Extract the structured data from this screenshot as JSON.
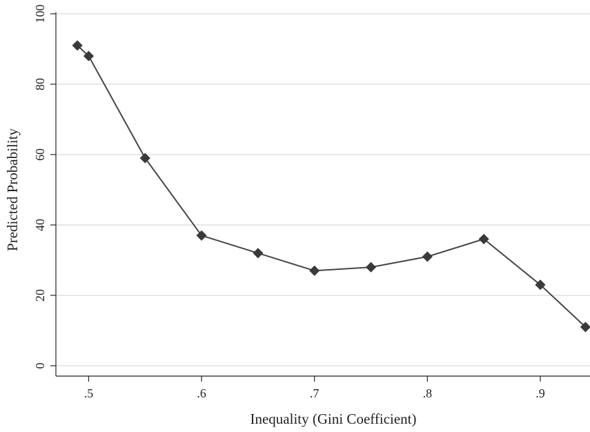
{
  "chart_data": {
    "type": "line",
    "xlabel": "Inequality (Gini Coefficient)",
    "ylabel": "Predicted Probability",
    "x_ticks": [
      ".5",
      ".6",
      ".7",
      ".8",
      ".9"
    ],
    "x_tick_values": [
      0.5,
      0.6,
      0.7,
      0.8,
      0.9
    ],
    "y_ticks": [
      "0",
      "20",
      "40",
      "60",
      "80",
      "100"
    ],
    "y_tick_values": [
      0,
      20,
      40,
      60,
      80,
      100
    ],
    "xlim": [
      0.471,
      0.944
    ],
    "ylim": [
      0,
      100
    ],
    "grid": true,
    "marker": "diamond",
    "colors": {
      "line": "#444444",
      "marker": "#3a3a3a",
      "grid": "#e0e0e0",
      "axis": "#222222"
    },
    "series": [
      {
        "x": [
          0.49,
          0.5,
          0.55,
          0.6,
          0.65,
          0.7,
          0.75,
          0.8,
          0.85,
          0.9,
          0.94
        ],
        "y": [
          91,
          88,
          59,
          37,
          32,
          27,
          28,
          31,
          36,
          23,
          11
        ]
      }
    ]
  }
}
